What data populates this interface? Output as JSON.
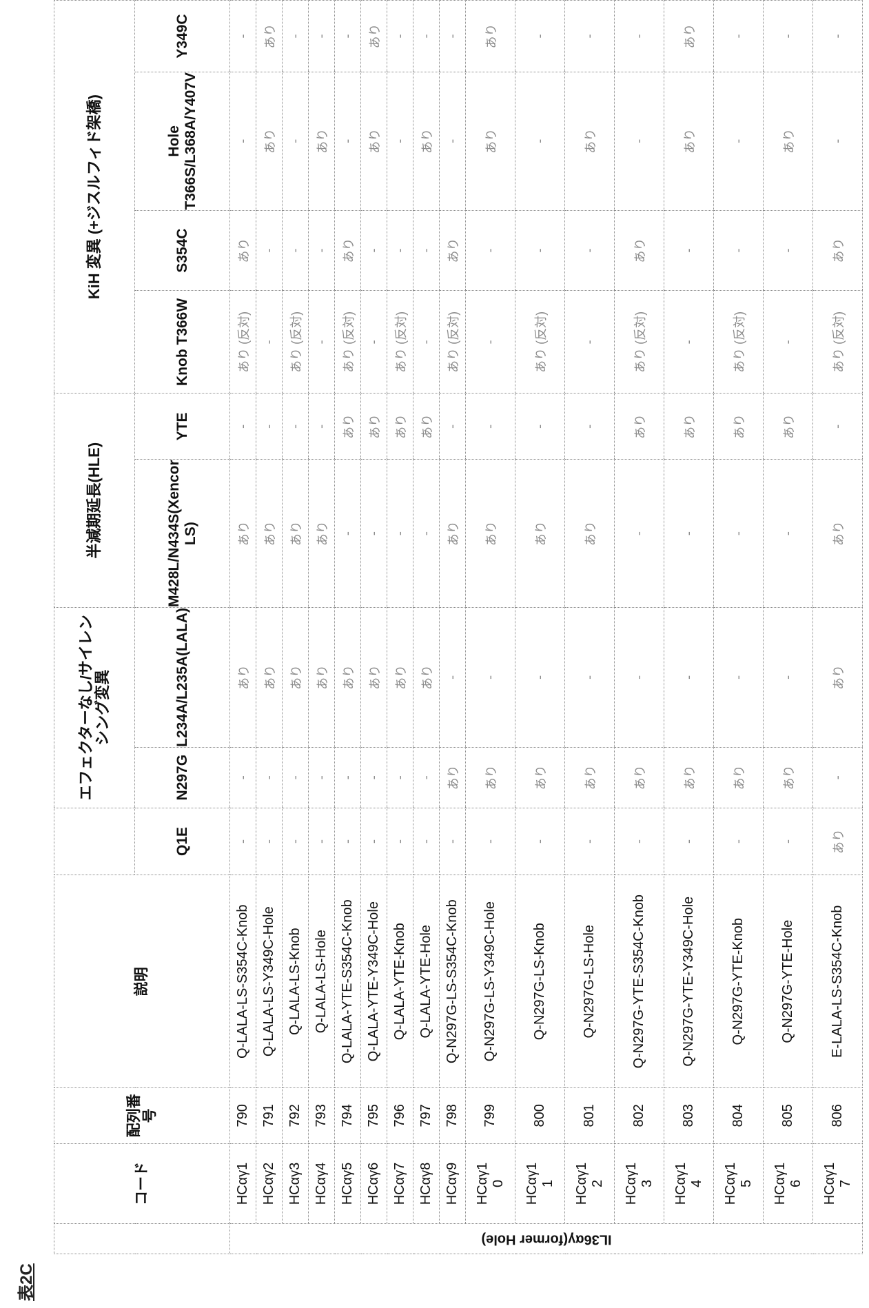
{
  "table_label": "表2C",
  "headers": {
    "code": "コード",
    "seq_no": "配列番号",
    "description": "説明",
    "q1e": "Q1E",
    "effector_group": "エフェクターなし/サイレンシング変異",
    "n297g": "N297G",
    "lala": "L234A/L235A(LALA)",
    "hle_group": "半減期延長(HLE)",
    "ls": "M428L/N434S(Xencor LS)",
    "yte": "YTE",
    "kih_group": "KiH 変異 (+ジスルフィド架橋)",
    "knob": "Knob T366W",
    "s354c": "S354C",
    "hole": "Hole T366S/L368A/Y407V",
    "y349c": "Y349C"
  },
  "row_group_label": "IL36αγ(former Hole)",
  "rows": [
    {
      "code": "HCαγ1",
      "seq": "790",
      "desc": "Q-LALA-LS-S354C-Knob",
      "q1e": "-",
      "n297g": "-",
      "lala": "あり",
      "ls": "あり",
      "yte": "-",
      "knob": "あり (反対)",
      "s354c": "あり",
      "hole": "-",
      "y349c": "-"
    },
    {
      "code": "HCαγ2",
      "seq": "791",
      "desc": "Q-LALA-LS-Y349C-Hole",
      "q1e": "-",
      "n297g": "-",
      "lala": "あり",
      "ls": "あり",
      "yte": "-",
      "knob": "-",
      "s354c": "-",
      "hole": "あり",
      "y349c": "あり"
    },
    {
      "code": "HCαγ3",
      "seq": "792",
      "desc": "Q-LALA-LS-Knob",
      "q1e": "-",
      "n297g": "-",
      "lala": "あり",
      "ls": "あり",
      "yte": "-",
      "knob": "あり (反対)",
      "s354c": "-",
      "hole": "-",
      "y349c": "-"
    },
    {
      "code": "HCαγ4",
      "seq": "793",
      "desc": "Q-LALA-LS-Hole",
      "q1e": "-",
      "n297g": "-",
      "lala": "あり",
      "ls": "あり",
      "yte": "-",
      "knob": "-",
      "s354c": "-",
      "hole": "あり",
      "y349c": "-"
    },
    {
      "code": "HCαγ5",
      "seq": "794",
      "desc": "Q-LALA-YTE-S354C-Knob",
      "q1e": "-",
      "n297g": "-",
      "lala": "あり",
      "ls": "-",
      "yte": "あり",
      "knob": "あり (反対)",
      "s354c": "あり",
      "hole": "-",
      "y349c": "-"
    },
    {
      "code": "HCαγ6",
      "seq": "795",
      "desc": "Q-LALA-YTE-Y349C-Hole",
      "q1e": "-",
      "n297g": "-",
      "lala": "あり",
      "ls": "-",
      "yte": "あり",
      "knob": "-",
      "s354c": "-",
      "hole": "あり",
      "y349c": "あり"
    },
    {
      "code": "HCαγ7",
      "seq": "796",
      "desc": "Q-LALA-YTE-Knob",
      "q1e": "-",
      "n297g": "-",
      "lala": "あり",
      "ls": "-",
      "yte": "あり",
      "knob": "あり (反対)",
      "s354c": "-",
      "hole": "-",
      "y349c": "-"
    },
    {
      "code": "HCαγ8",
      "seq": "797",
      "desc": "Q-LALA-YTE-Hole",
      "q1e": "-",
      "n297g": "-",
      "lala": "あり",
      "ls": "-",
      "yte": "あり",
      "knob": "-",
      "s354c": "-",
      "hole": "あり",
      "y349c": "-"
    },
    {
      "code": "HCαγ9",
      "seq": "798",
      "desc": "Q-N297G-LS-S354C-Knob",
      "q1e": "-",
      "n297g": "あり",
      "lala": "-",
      "ls": "あり",
      "yte": "-",
      "knob": "あり (反対)",
      "s354c": "あり",
      "hole": "-",
      "y349c": "-"
    },
    {
      "code": "HCαγ10",
      "seq": "799",
      "desc": "Q-N297G-LS-Y349C-Hole",
      "q1e": "-",
      "n297g": "あり",
      "lala": "-",
      "ls": "あり",
      "yte": "-",
      "knob": "-",
      "s354c": "-",
      "hole": "あり",
      "y349c": "あり"
    },
    {
      "code": "HCαγ11",
      "seq": "800",
      "desc": "Q-N297G-LS-Knob",
      "q1e": "-",
      "n297g": "あり",
      "lala": "-",
      "ls": "あり",
      "yte": "-",
      "knob": "あり (反対)",
      "s354c": "-",
      "hole": "-",
      "y349c": "-"
    },
    {
      "code": "HCαγ12",
      "seq": "801",
      "desc": "Q-N297G-LS-Hole",
      "q1e": "-",
      "n297g": "あり",
      "lala": "-",
      "ls": "あり",
      "yte": "-",
      "knob": "-",
      "s354c": "-",
      "hole": "あり",
      "y349c": "-"
    },
    {
      "code": "HCαγ13",
      "seq": "802",
      "desc": "Q-N297G-YTE-S354C-Knob",
      "q1e": "-",
      "n297g": "あり",
      "lala": "-",
      "ls": "-",
      "yte": "あり",
      "knob": "あり (反対)",
      "s354c": "あり",
      "hole": "-",
      "y349c": "-"
    },
    {
      "code": "HCαγ14",
      "seq": "803",
      "desc": "Q-N297G-YTE-Y349C-Hole",
      "q1e": "-",
      "n297g": "あり",
      "lala": "-",
      "ls": "-",
      "yte": "あり",
      "knob": "-",
      "s354c": "-",
      "hole": "あり",
      "y349c": "あり"
    },
    {
      "code": "HCαγ15",
      "seq": "804",
      "desc": "Q-N297G-YTE-Knob",
      "q1e": "-",
      "n297g": "あり",
      "lala": "-",
      "ls": "-",
      "yte": "あり",
      "knob": "あり (反対)",
      "s354c": "-",
      "hole": "-",
      "y349c": "-"
    },
    {
      "code": "HCαγ16",
      "seq": "805",
      "desc": "Q-N297G-YTE-Hole",
      "q1e": "-",
      "n297g": "あり",
      "lala": "-",
      "ls": "-",
      "yte": "あり",
      "knob": "-",
      "s354c": "-",
      "hole": "あり",
      "y349c": "-"
    },
    {
      "code": "HCαγ17",
      "seq": "806",
      "desc": "E-LALA-LS-S354C-Knob",
      "q1e": "あり",
      "n297g": "-",
      "lala": "あり",
      "ls": "あり",
      "yte": "-",
      "knob": "あり (反対)",
      "s354c": "あり",
      "hole": "-",
      "y349c": "-"
    }
  ]
}
